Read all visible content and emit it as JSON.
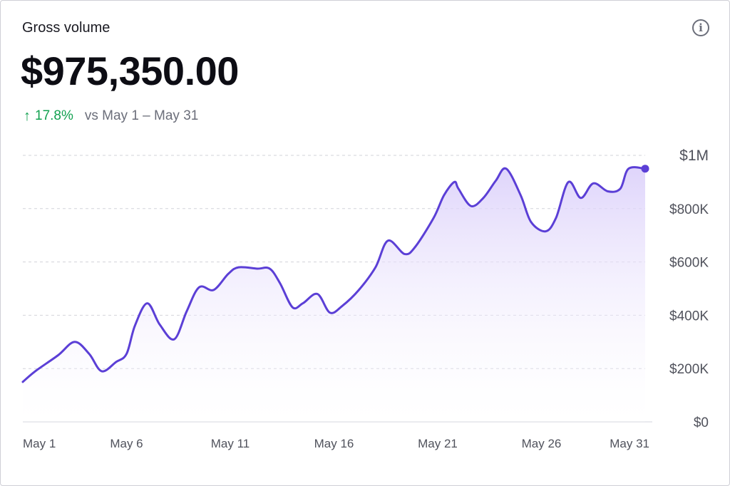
{
  "header": {
    "title": "Gross volume",
    "amount": "$975,350.00",
    "change_pct": "17.8%",
    "comparison": "vs May 1 – May 31",
    "info_icon": "info-icon"
  },
  "colors": {
    "line": "#5b3fd6",
    "fill_top": "#d9cdfa",
    "positive": "#12a150"
  },
  "chart_data": {
    "type": "area",
    "title": "Gross volume",
    "xlabel": "",
    "ylabel": "",
    "ylim": [
      0,
      1000000
    ],
    "xlim": [
      1,
      31
    ],
    "y_ticks": [
      {
        "value": 1000000,
        "label": "$1M"
      },
      {
        "value": 800000,
        "label": "$800K"
      },
      {
        "value": 600000,
        "label": "$600K"
      },
      {
        "value": 400000,
        "label": "$400K"
      },
      {
        "value": 200000,
        "label": "$200K"
      },
      {
        "value": 0,
        "label": "$0"
      }
    ],
    "x_ticks": [
      {
        "day": 1,
        "label": "May 1"
      },
      {
        "day": 6,
        "label": "May 6"
      },
      {
        "day": 11,
        "label": "May 11"
      },
      {
        "day": 16,
        "label": "May 16"
      },
      {
        "day": 21,
        "label": "May 21"
      },
      {
        "day": 26,
        "label": "May 26"
      },
      {
        "day": 31,
        "label": "May 31"
      }
    ],
    "grid": true,
    "series": [
      {
        "points": [
          [
            1.0,
            150000
          ],
          [
            1.6,
            190000
          ],
          [
            2.7,
            250000
          ],
          [
            3.5,
            300000
          ],
          [
            4.2,
            255000
          ],
          [
            4.8,
            190000
          ],
          [
            5.5,
            225000
          ],
          [
            6.0,
            255000
          ],
          [
            6.4,
            360000
          ],
          [
            7.0,
            445000
          ],
          [
            7.6,
            365000
          ],
          [
            8.3,
            310000
          ],
          [
            8.9,
            415000
          ],
          [
            9.5,
            505000
          ],
          [
            10.2,
            495000
          ],
          [
            10.9,
            555000
          ],
          [
            11.4,
            580000
          ],
          [
            12.3,
            575000
          ],
          [
            12.9,
            575000
          ],
          [
            13.4,
            520000
          ],
          [
            14.0,
            430000
          ],
          [
            14.5,
            445000
          ],
          [
            15.2,
            480000
          ],
          [
            15.8,
            410000
          ],
          [
            16.4,
            435000
          ],
          [
            17.2,
            495000
          ],
          [
            18.0,
            580000
          ],
          [
            18.6,
            680000
          ],
          [
            19.4,
            630000
          ],
          [
            19.9,
            655000
          ],
          [
            20.8,
            765000
          ],
          [
            21.3,
            850000
          ],
          [
            21.8,
            900000
          ],
          [
            22.0,
            875000
          ],
          [
            22.6,
            810000
          ],
          [
            23.2,
            840000
          ],
          [
            23.8,
            905000
          ],
          [
            24.3,
            950000
          ],
          [
            25.0,
            850000
          ],
          [
            25.5,
            750000
          ],
          [
            26.2,
            715000
          ],
          [
            26.7,
            765000
          ],
          [
            27.3,
            900000
          ],
          [
            27.9,
            840000
          ],
          [
            28.5,
            895000
          ],
          [
            29.2,
            865000
          ],
          [
            29.8,
            875000
          ],
          [
            30.2,
            950000
          ],
          [
            31.0,
            950000
          ]
        ],
        "end_marker": true
      }
    ]
  }
}
